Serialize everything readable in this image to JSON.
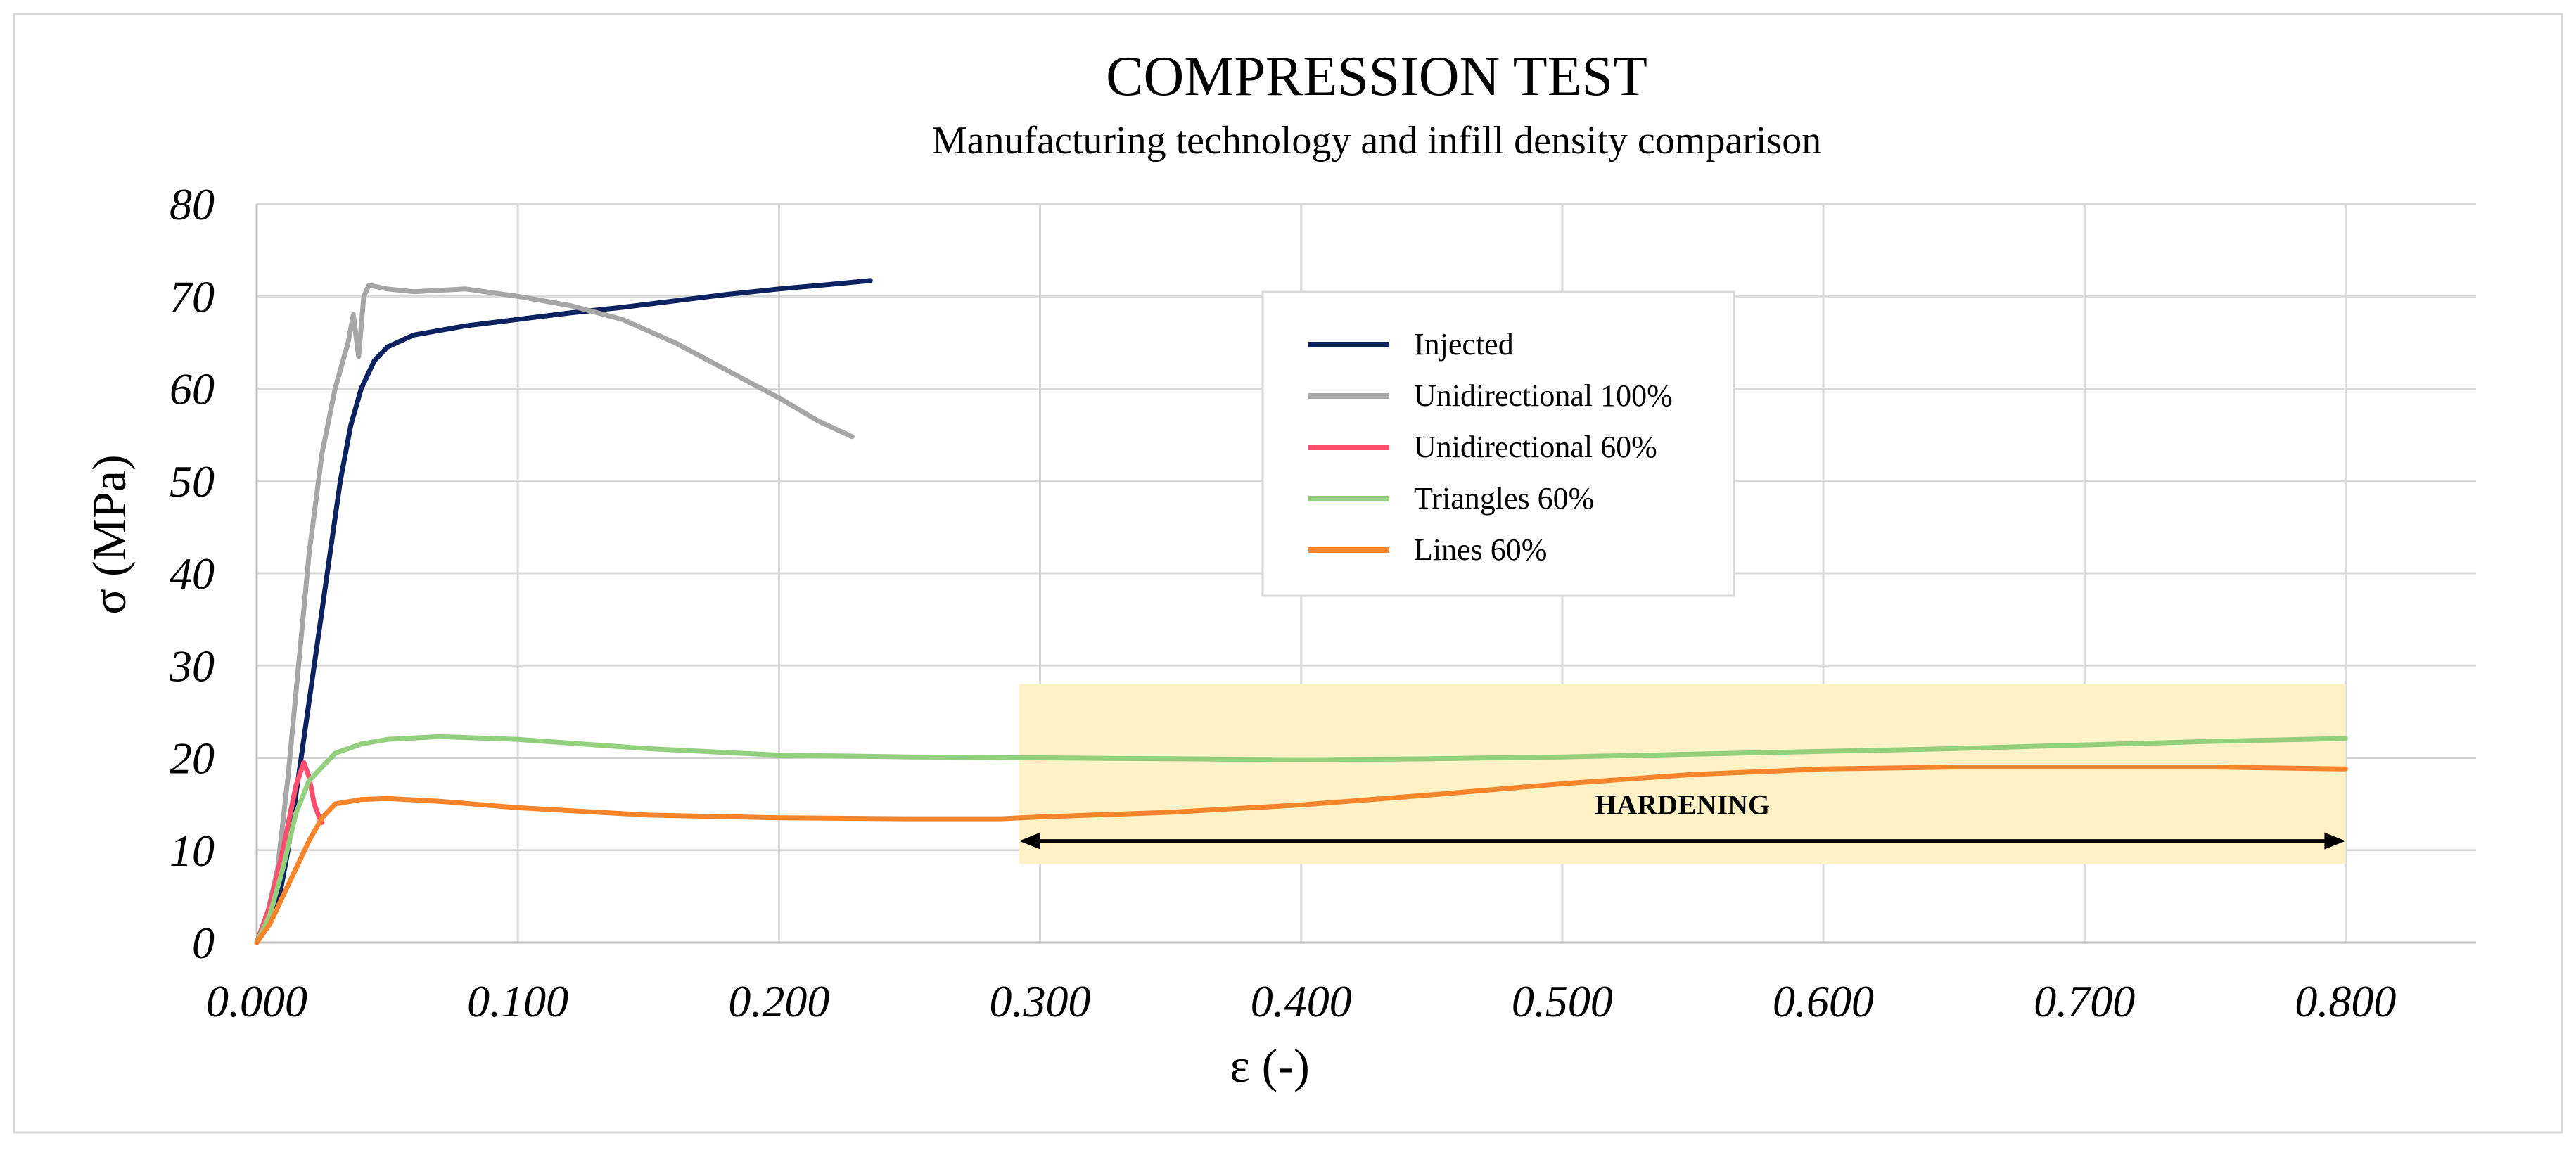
{
  "chart_data": {
    "type": "line",
    "title": "COMPRESSION TEST",
    "subtitle": "Manufacturing technology and infill density comparison",
    "xlabel": "ε (-)",
    "ylabel": "σ (MPa)",
    "xlim": [
      0,
      0.85
    ],
    "ylim": [
      0,
      80
    ],
    "x_ticks": [
      0.0,
      0.1,
      0.2,
      0.3,
      0.4,
      0.5,
      0.6,
      0.7,
      0.8
    ],
    "x_tick_labels": [
      "0.000",
      "0.100",
      "0.200",
      "0.300",
      "0.400",
      "0.500",
      "0.600",
      "0.700",
      "0.800"
    ],
    "y_ticks": [
      0,
      10,
      20,
      30,
      40,
      50,
      60,
      70,
      80
    ],
    "y_tick_labels": [
      "0",
      "10",
      "20",
      "30",
      "40",
      "50",
      "60",
      "70",
      "80"
    ],
    "grid": true,
    "legend_position": "top-center",
    "series": [
      {
        "name": "Injected",
        "color": "#0d2260",
        "points": [
          [
            0.0,
            0
          ],
          [
            0.008,
            4
          ],
          [
            0.012,
            10
          ],
          [
            0.016,
            18
          ],
          [
            0.02,
            26
          ],
          [
            0.024,
            34
          ],
          [
            0.028,
            42
          ],
          [
            0.032,
            50
          ],
          [
            0.036,
            56
          ],
          [
            0.04,
            60
          ],
          [
            0.045,
            63
          ],
          [
            0.05,
            64.5
          ],
          [
            0.06,
            65.8
          ],
          [
            0.08,
            66.8
          ],
          [
            0.1,
            67.5
          ],
          [
            0.12,
            68.2
          ],
          [
            0.14,
            68.8
          ],
          [
            0.16,
            69.5
          ],
          [
            0.18,
            70.2
          ],
          [
            0.2,
            70.8
          ],
          [
            0.22,
            71.3
          ],
          [
            0.235,
            71.7
          ]
        ]
      },
      {
        "name": "Unidirectional 100%",
        "color": "#a6a6a6",
        "points": [
          [
            0.0,
            0
          ],
          [
            0.004,
            3
          ],
          [
            0.008,
            8
          ],
          [
            0.012,
            18
          ],
          [
            0.016,
            30
          ],
          [
            0.02,
            42
          ],
          [
            0.025,
            53
          ],
          [
            0.03,
            60
          ],
          [
            0.035,
            65
          ],
          [
            0.037,
            68
          ],
          [
            0.039,
            63.5
          ],
          [
            0.041,
            70
          ],
          [
            0.043,
            71.2
          ],
          [
            0.05,
            70.8
          ],
          [
            0.06,
            70.5
          ],
          [
            0.08,
            70.8
          ],
          [
            0.1,
            70
          ],
          [
            0.12,
            69
          ],
          [
            0.14,
            67.5
          ],
          [
            0.16,
            65
          ],
          [
            0.18,
            62
          ],
          [
            0.2,
            59
          ],
          [
            0.215,
            56.5
          ],
          [
            0.228,
            54.8
          ]
        ]
      },
      {
        "name": "Unidirectional 60%",
        "color": "#ff4d6d",
        "points": [
          [
            0.0,
            0
          ],
          [
            0.005,
            4
          ],
          [
            0.01,
            10
          ],
          [
            0.015,
            17
          ],
          [
            0.018,
            19.5
          ],
          [
            0.02,
            18
          ],
          [
            0.022,
            15
          ],
          [
            0.024,
            13.5
          ],
          [
            0.025,
            13
          ]
        ]
      },
      {
        "name": "Triangles 60%",
        "color": "#92d07e",
        "points": [
          [
            0.0,
            0
          ],
          [
            0.005,
            3
          ],
          [
            0.01,
            8
          ],
          [
            0.015,
            14
          ],
          [
            0.02,
            17.5
          ],
          [
            0.025,
            19
          ],
          [
            0.03,
            20.5
          ],
          [
            0.04,
            21.5
          ],
          [
            0.05,
            22
          ],
          [
            0.07,
            22.3
          ],
          [
            0.1,
            22
          ],
          [
            0.15,
            21
          ],
          [
            0.2,
            20.3
          ],
          [
            0.25,
            20.1
          ],
          [
            0.3,
            20
          ],
          [
            0.35,
            19.9
          ],
          [
            0.4,
            19.8
          ],
          [
            0.45,
            19.9
          ],
          [
            0.5,
            20.1
          ],
          [
            0.55,
            20.4
          ],
          [
            0.6,
            20.7
          ],
          [
            0.65,
            21
          ],
          [
            0.7,
            21.4
          ],
          [
            0.75,
            21.8
          ],
          [
            0.8,
            22.1
          ]
        ]
      },
      {
        "name": "Lines 60%",
        "color": "#f5842b",
        "points": [
          [
            0.0,
            0
          ],
          [
            0.005,
            2
          ],
          [
            0.01,
            5
          ],
          [
            0.015,
            8
          ],
          [
            0.02,
            11
          ],
          [
            0.025,
            13.5
          ],
          [
            0.03,
            15
          ],
          [
            0.04,
            15.5
          ],
          [
            0.05,
            15.6
          ],
          [
            0.07,
            15.3
          ],
          [
            0.1,
            14.6
          ],
          [
            0.15,
            13.8
          ],
          [
            0.2,
            13.5
          ],
          [
            0.25,
            13.4
          ],
          [
            0.285,
            13.4
          ],
          [
            0.3,
            13.6
          ],
          [
            0.35,
            14.1
          ],
          [
            0.4,
            14.9
          ],
          [
            0.45,
            16
          ],
          [
            0.5,
            17.2
          ],
          [
            0.55,
            18.2
          ],
          [
            0.6,
            18.8
          ],
          [
            0.65,
            19
          ],
          [
            0.7,
            19
          ],
          [
            0.75,
            19
          ],
          [
            0.8,
            18.8
          ]
        ]
      }
    ],
    "annotations": [
      {
        "text": "HARDENING",
        "x_range": [
          0.292,
          0.8
        ],
        "y_range": [
          8.5,
          28
        ],
        "arrow_y": 11,
        "arrow_from": 0.292,
        "arrow_to": 0.8,
        "fill": "#fff2c6"
      }
    ]
  }
}
